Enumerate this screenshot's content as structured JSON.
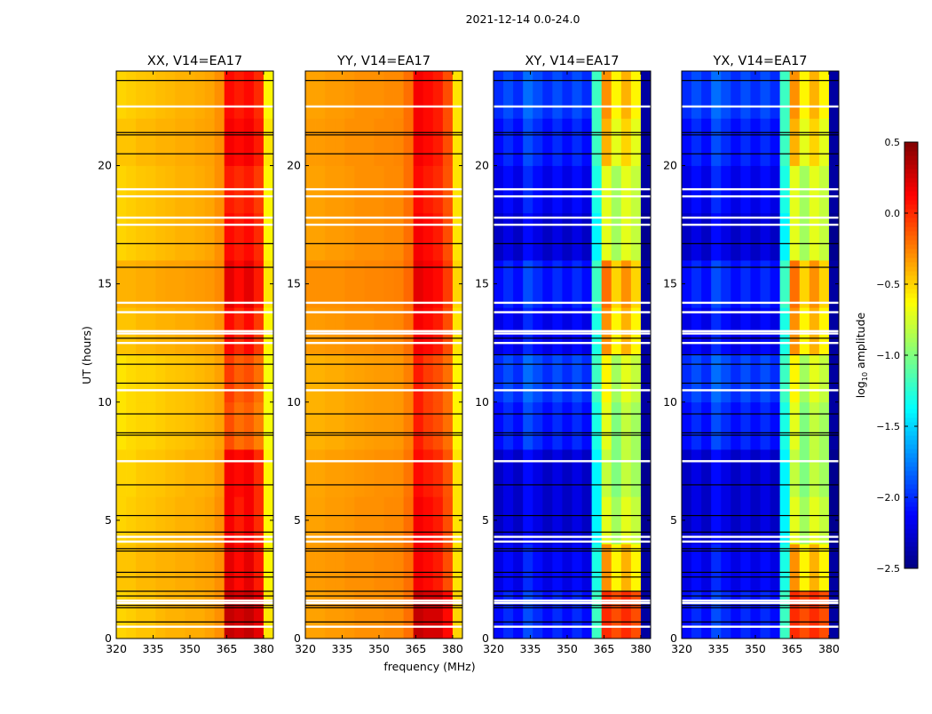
{
  "chart_data": {
    "type": "heatmap",
    "title": "2021-12-14 0.0-24.0",
    "xlabel": "frequency (MHz)",
    "ylabel": "UT (hours)",
    "xlim": [
      320,
      384
    ],
    "ylim": [
      0,
      24
    ],
    "xticks": [
      "320",
      "335",
      "350",
      "365",
      "380"
    ],
    "xtick_values": [
      320,
      335,
      350,
      365,
      380
    ],
    "yticks": [
      "0",
      "5",
      "10",
      "15",
      "20"
    ],
    "ytick_values": [
      0,
      5,
      10,
      15,
      20
    ],
    "freq_bin_edges_start": 320,
    "freq_bin_width": 4,
    "time_block_hours": 2,
    "colorbar": {
      "label_main": "log",
      "label_sub": "10",
      "label_rest": " amplitude",
      "range": [
        -2.5,
        0.5
      ],
      "ticks": [
        "0.5",
        "0.0",
        "−0.5",
        "−1.0",
        "−1.5",
        "−2.0",
        "−2.5"
      ],
      "tick_values": [
        0.5,
        0.0,
        -0.5,
        -1.0,
        -1.5,
        -2.0,
        -2.5
      ],
      "colormap": "jet"
    },
    "flag_lines_white_hours": [
      22.5,
      19.0,
      18.7,
      17.8,
      17.5,
      14.2,
      13.8,
      13.0,
      12.9,
      12.5,
      10.5,
      7.5,
      4.3,
      4.1,
      1.6,
      1.5,
      0.5
    ],
    "flag_lines_black_hours": [
      23.6,
      21.4,
      21.3,
      20.5,
      16.7,
      15.7,
      12.7,
      12.0,
      11.6,
      10.8,
      9.5,
      8.7,
      8.6,
      6.5,
      5.2,
      4.5,
      3.8,
      3.7,
      2.8,
      2.6,
      2.0,
      1.8,
      1.4,
      1.3,
      0.7
    ],
    "panels": [
      {
        "title": "XX, V14=EA17",
        "values": [
          [
            -0.5,
            -0.48,
            -0.45,
            -0.45,
            -0.42,
            -0.4,
            -0.4,
            -0.38,
            -0.38,
            -0.35,
            -0.3,
            0.3,
            0.25,
            0.3,
            0.2,
            -0.55
          ],
          [
            -0.45,
            -0.45,
            -0.42,
            -0.42,
            -0.4,
            -0.4,
            -0.38,
            -0.38,
            -0.36,
            -0.35,
            -0.3,
            0.2,
            0.1,
            0.2,
            0.05,
            -0.6
          ],
          [
            -0.5,
            -0.48,
            -0.46,
            -0.45,
            -0.43,
            -0.42,
            -0.4,
            -0.4,
            -0.38,
            -0.36,
            -0.3,
            0.15,
            0.05,
            0.15,
            0.0,
            -0.6
          ],
          [
            -0.5,
            -0.5,
            -0.47,
            -0.46,
            -0.45,
            -0.43,
            -0.42,
            -0.4,
            -0.4,
            -0.38,
            -0.32,
            0.15,
            0.1,
            0.15,
            0.0,
            -0.6
          ],
          [
            -0.55,
            -0.52,
            -0.5,
            -0.5,
            -0.48,
            -0.46,
            -0.45,
            -0.44,
            -0.42,
            -0.4,
            -0.35,
            -0.1,
            -0.2,
            -0.15,
            -0.25,
            -0.65
          ],
          [
            -0.55,
            -0.52,
            -0.5,
            -0.5,
            -0.48,
            -0.46,
            -0.45,
            -0.44,
            -0.42,
            -0.4,
            -0.35,
            -0.05,
            -0.15,
            -0.1,
            -0.2,
            -0.65
          ],
          [
            -0.45,
            -0.45,
            -0.42,
            -0.42,
            -0.4,
            -0.4,
            -0.38,
            -0.38,
            -0.36,
            -0.35,
            -0.3,
            0.1,
            0.0,
            0.1,
            -0.05,
            -0.6
          ],
          [
            -0.4,
            -0.4,
            -0.38,
            -0.38,
            -0.36,
            -0.35,
            -0.35,
            -0.34,
            -0.33,
            -0.32,
            -0.28,
            0.2,
            0.1,
            0.2,
            0.05,
            -0.55
          ],
          [
            -0.5,
            -0.48,
            -0.46,
            -0.45,
            -0.43,
            -0.42,
            -0.4,
            -0.4,
            -0.38,
            -0.36,
            -0.3,
            0.1,
            0.05,
            0.1,
            0.0,
            -0.6
          ],
          [
            -0.5,
            -0.48,
            -0.46,
            -0.45,
            -0.43,
            -0.42,
            -0.4,
            -0.4,
            -0.38,
            -0.36,
            -0.3,
            0.05,
            0.0,
            0.05,
            -0.05,
            -0.6
          ],
          [
            -0.45,
            -0.45,
            -0.42,
            -0.42,
            -0.4,
            -0.4,
            -0.38,
            -0.38,
            -0.36,
            -0.35,
            -0.3,
            0.15,
            0.1,
            0.15,
            0.05,
            -0.55
          ],
          [
            -0.5,
            -0.48,
            -0.46,
            -0.45,
            -0.43,
            -0.42,
            -0.4,
            -0.4,
            -0.38,
            -0.36,
            -0.3,
            0.1,
            0.05,
            0.1,
            0.0,
            -0.6
          ]
        ]
      },
      {
        "title": "YY, V14=EA17",
        "values": [
          [
            -0.35,
            -0.35,
            -0.33,
            -0.33,
            -0.32,
            -0.3,
            -0.3,
            -0.3,
            -0.28,
            -0.28,
            -0.2,
            0.3,
            0.25,
            0.25,
            0.1,
            -0.5
          ],
          [
            -0.33,
            -0.33,
            -0.32,
            -0.32,
            -0.3,
            -0.3,
            -0.3,
            -0.28,
            -0.28,
            -0.27,
            -0.2,
            0.15,
            0.1,
            0.05,
            -0.1,
            -0.55
          ],
          [
            -0.35,
            -0.35,
            -0.33,
            -0.33,
            -0.32,
            -0.3,
            -0.3,
            -0.3,
            -0.28,
            -0.28,
            -0.2,
            0.15,
            0.1,
            0.05,
            -0.1,
            -0.55
          ],
          [
            -0.36,
            -0.36,
            -0.34,
            -0.34,
            -0.33,
            -0.32,
            -0.31,
            -0.3,
            -0.3,
            -0.29,
            -0.22,
            0.1,
            0.05,
            0.0,
            -0.12,
            -0.55
          ],
          [
            -0.4,
            -0.4,
            -0.38,
            -0.38,
            -0.36,
            -0.35,
            -0.34,
            -0.33,
            -0.33,
            -0.32,
            -0.25,
            0.05,
            -0.05,
            -0.1,
            -0.2,
            -0.6
          ],
          [
            -0.4,
            -0.4,
            -0.38,
            -0.38,
            -0.36,
            -0.35,
            -0.34,
            -0.33,
            -0.33,
            -0.32,
            -0.25,
            0.05,
            -0.05,
            -0.1,
            -0.2,
            -0.6
          ],
          [
            -0.33,
            -0.33,
            -0.32,
            -0.32,
            -0.3,
            -0.3,
            -0.3,
            -0.28,
            -0.28,
            -0.27,
            -0.2,
            0.15,
            0.1,
            0.05,
            -0.1,
            -0.55
          ],
          [
            -0.3,
            -0.3,
            -0.3,
            -0.3,
            -0.28,
            -0.28,
            -0.27,
            -0.27,
            -0.26,
            -0.25,
            -0.18,
            0.2,
            0.15,
            0.1,
            -0.05,
            -0.5
          ],
          [
            -0.35,
            -0.35,
            -0.33,
            -0.33,
            -0.32,
            -0.3,
            -0.3,
            -0.3,
            -0.28,
            -0.28,
            -0.2,
            0.15,
            0.1,
            0.05,
            -0.1,
            -0.55
          ],
          [
            -0.35,
            -0.35,
            -0.33,
            -0.33,
            -0.32,
            -0.3,
            -0.3,
            -0.3,
            -0.28,
            -0.28,
            -0.2,
            0.1,
            0.05,
            0.0,
            -0.12,
            -0.55
          ],
          [
            -0.33,
            -0.33,
            -0.32,
            -0.32,
            -0.3,
            -0.3,
            -0.3,
            -0.28,
            -0.28,
            -0.27,
            -0.2,
            0.15,
            0.1,
            0.05,
            -0.1,
            -0.55
          ],
          [
            -0.35,
            -0.35,
            -0.33,
            -0.33,
            -0.32,
            -0.3,
            -0.3,
            -0.3,
            -0.28,
            -0.28,
            -0.2,
            0.15,
            0.1,
            0.05,
            -0.1,
            -0.55
          ]
        ]
      },
      {
        "title": "XY, V14=EA17",
        "values": [
          [
            -2.1,
            -2.0,
            -2.1,
            -1.9,
            -2.0,
            -2.1,
            -2.0,
            -2.1,
            -2.0,
            -2.1,
            -1.2,
            0.0,
            -0.1,
            0.0,
            -0.1,
            -2.4
          ],
          [
            -2.2,
            -2.1,
            -2.2,
            -2.0,
            -2.1,
            -2.2,
            -2.1,
            -2.2,
            -2.1,
            -2.2,
            -1.3,
            -0.3,
            -0.6,
            -0.4,
            -0.6,
            -2.4
          ],
          [
            -2.3,
            -2.2,
            -2.3,
            -2.1,
            -2.2,
            -2.3,
            -2.2,
            -2.3,
            -2.2,
            -2.3,
            -1.4,
            -0.7,
            -0.9,
            -0.7,
            -0.8,
            -2.45
          ],
          [
            -2.3,
            -2.2,
            -2.3,
            -2.1,
            -2.2,
            -2.3,
            -2.2,
            -2.3,
            -2.2,
            -2.3,
            -1.4,
            -0.8,
            -1.0,
            -0.8,
            -0.9,
            -2.45
          ],
          [
            -2.1,
            -2.0,
            -2.1,
            -1.9,
            -2.0,
            -2.1,
            -2.0,
            -2.1,
            -2.0,
            -2.1,
            -1.3,
            -0.7,
            -1.0,
            -0.8,
            -0.9,
            -2.4
          ],
          [
            -2.0,
            -1.9,
            -2.0,
            -1.8,
            -1.9,
            -2.0,
            -1.9,
            -2.0,
            -1.9,
            -2.0,
            -1.2,
            -0.6,
            -0.9,
            -0.7,
            -0.8,
            -2.4
          ],
          [
            -2.2,
            -2.1,
            -2.2,
            -2.0,
            -2.1,
            -2.2,
            -2.1,
            -2.2,
            -2.1,
            -2.2,
            -1.3,
            -0.3,
            -0.6,
            -0.4,
            -0.6,
            -2.4
          ],
          [
            -2.1,
            -2.0,
            -2.1,
            -1.9,
            -2.0,
            -2.1,
            -2.0,
            -2.1,
            -2.0,
            -2.1,
            -1.2,
            -0.2,
            -0.5,
            -0.3,
            -0.5,
            -2.4
          ],
          [
            -2.3,
            -2.2,
            -2.3,
            -2.1,
            -2.2,
            -2.3,
            -2.2,
            -2.3,
            -2.2,
            -2.3,
            -1.4,
            -0.7,
            -0.9,
            -0.7,
            -0.8,
            -2.45
          ],
          [
            -2.2,
            -2.1,
            -2.2,
            -2.0,
            -2.1,
            -2.2,
            -2.1,
            -2.2,
            -2.1,
            -2.2,
            -1.3,
            -0.7,
            -0.9,
            -0.7,
            -0.8,
            -2.4
          ],
          [
            -2.1,
            -2.0,
            -2.1,
            -1.9,
            -2.0,
            -2.1,
            -2.0,
            -2.1,
            -2.0,
            -2.1,
            -1.2,
            -0.4,
            -0.7,
            -0.5,
            -0.7,
            -2.4
          ],
          [
            -2.0,
            -1.9,
            -2.0,
            -1.8,
            -1.9,
            -2.0,
            -1.9,
            -2.0,
            -1.9,
            -2.0,
            -1.2,
            -0.3,
            -0.6,
            -0.4,
            -0.6,
            -2.4
          ]
        ]
      },
      {
        "title": "YX, V14=EA17",
        "values": [
          [
            -2.1,
            -2.0,
            -2.1,
            -1.9,
            -2.0,
            -2.1,
            -2.0,
            -2.1,
            -2.0,
            -2.1,
            -1.2,
            0.0,
            -0.1,
            0.0,
            -0.1,
            -2.4
          ],
          [
            -2.2,
            -2.1,
            -2.2,
            -2.0,
            -2.1,
            -2.2,
            -2.1,
            -2.2,
            -2.1,
            -2.2,
            -1.3,
            -0.3,
            -0.6,
            -0.4,
            -0.6,
            -2.4
          ],
          [
            -2.3,
            -2.2,
            -2.3,
            -2.1,
            -2.2,
            -2.3,
            -2.2,
            -2.3,
            -2.2,
            -2.3,
            -1.4,
            -0.7,
            -0.9,
            -0.7,
            -0.8,
            -2.45
          ],
          [
            -2.3,
            -2.2,
            -2.3,
            -2.1,
            -2.2,
            -2.3,
            -2.2,
            -2.3,
            -2.2,
            -2.3,
            -1.4,
            -0.8,
            -1.0,
            -0.8,
            -0.9,
            -2.45
          ],
          [
            -2.1,
            -2.0,
            -2.1,
            -1.9,
            -2.0,
            -2.1,
            -2.0,
            -2.1,
            -2.0,
            -2.1,
            -1.3,
            -0.7,
            -1.0,
            -0.8,
            -0.9,
            -2.4
          ],
          [
            -2.0,
            -1.9,
            -2.0,
            -1.8,
            -1.9,
            -2.0,
            -1.9,
            -2.0,
            -1.9,
            -2.0,
            -1.2,
            -0.6,
            -0.9,
            -0.7,
            -0.8,
            -2.4
          ],
          [
            -2.2,
            -2.1,
            -2.2,
            -2.0,
            -2.1,
            -2.2,
            -2.1,
            -2.2,
            -2.1,
            -2.2,
            -1.3,
            -0.3,
            -0.6,
            -0.4,
            -0.6,
            -2.4
          ],
          [
            -2.1,
            -2.0,
            -2.1,
            -1.9,
            -2.0,
            -2.1,
            -2.0,
            -2.1,
            -2.0,
            -2.1,
            -1.2,
            -0.2,
            -0.5,
            -0.3,
            -0.5,
            -2.4
          ],
          [
            -2.3,
            -2.2,
            -2.3,
            -2.1,
            -2.2,
            -2.3,
            -2.2,
            -2.3,
            -2.2,
            -2.3,
            -1.4,
            -0.7,
            -0.9,
            -0.7,
            -0.8,
            -2.45
          ],
          [
            -2.2,
            -2.1,
            -2.2,
            -2.0,
            -2.1,
            -2.2,
            -2.1,
            -2.2,
            -2.1,
            -2.2,
            -1.3,
            -0.7,
            -0.9,
            -0.7,
            -0.8,
            -2.4
          ],
          [
            -2.1,
            -2.0,
            -2.1,
            -1.9,
            -2.0,
            -2.1,
            -2.0,
            -2.1,
            -2.0,
            -2.1,
            -1.2,
            -0.4,
            -0.7,
            -0.5,
            -0.7,
            -2.4
          ],
          [
            -2.0,
            -1.9,
            -2.0,
            -1.8,
            -1.9,
            -2.0,
            -1.9,
            -2.0,
            -1.9,
            -2.0,
            -1.2,
            -0.3,
            -0.6,
            -0.4,
            -0.6,
            -2.4
          ]
        ]
      }
    ]
  }
}
